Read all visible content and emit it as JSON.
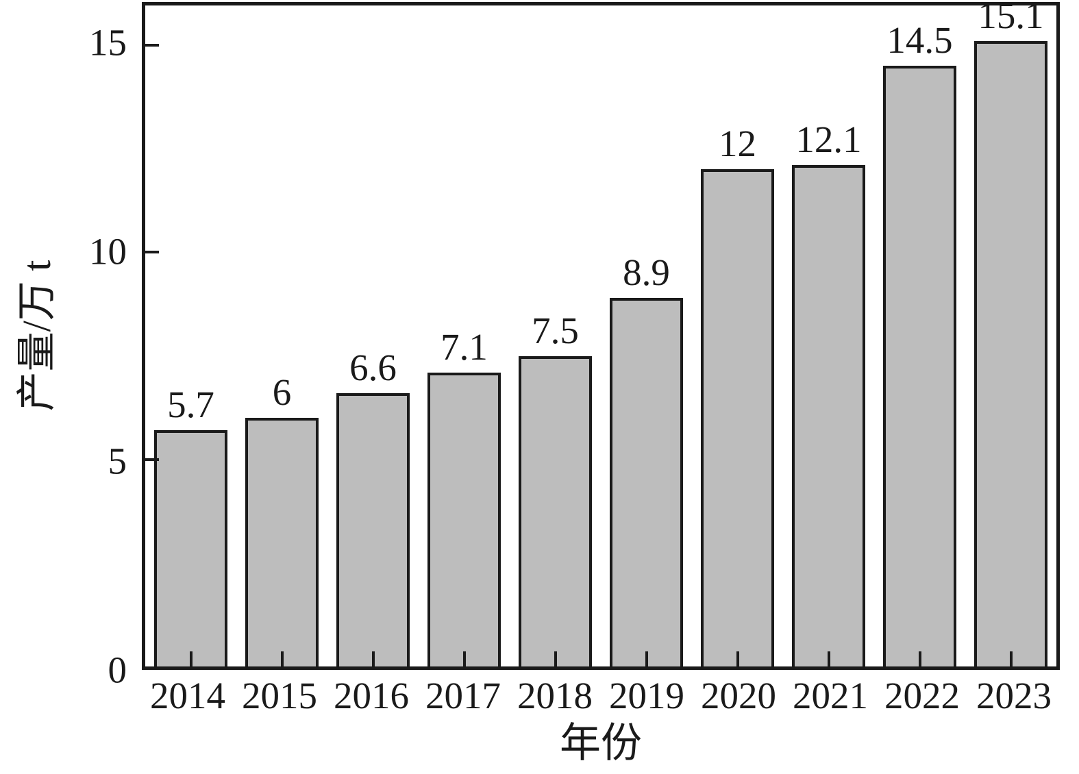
{
  "chart_data": {
    "type": "bar",
    "categories": [
      "2014",
      "2015",
      "2016",
      "2017",
      "2018",
      "2019",
      "2020",
      "2021",
      "2022",
      "2023"
    ],
    "values": [
      5.7,
      6,
      6.6,
      7.1,
      7.5,
      8.9,
      12,
      12.1,
      14.5,
      15.1
    ],
    "bar_labels": [
      "5.7",
      "6",
      "6.6",
      "7.1",
      "7.5",
      "8.9",
      "12",
      "12.1",
      "14.5",
      "15.1"
    ],
    "title": "",
    "xlabel": "年份",
    "ylabel": "产量/万 t",
    "yticks": [
      0,
      5,
      10,
      15
    ],
    "ylim": [
      0,
      15.96
    ],
    "grid": false,
    "legend": "none",
    "colors": {
      "bar_fill": "#bdbdbd",
      "bar_stroke": "#1a1a1a",
      "axis": "#1a1a1a",
      "background": "#ffffff",
      "text": "#1a1a1a"
    }
  }
}
